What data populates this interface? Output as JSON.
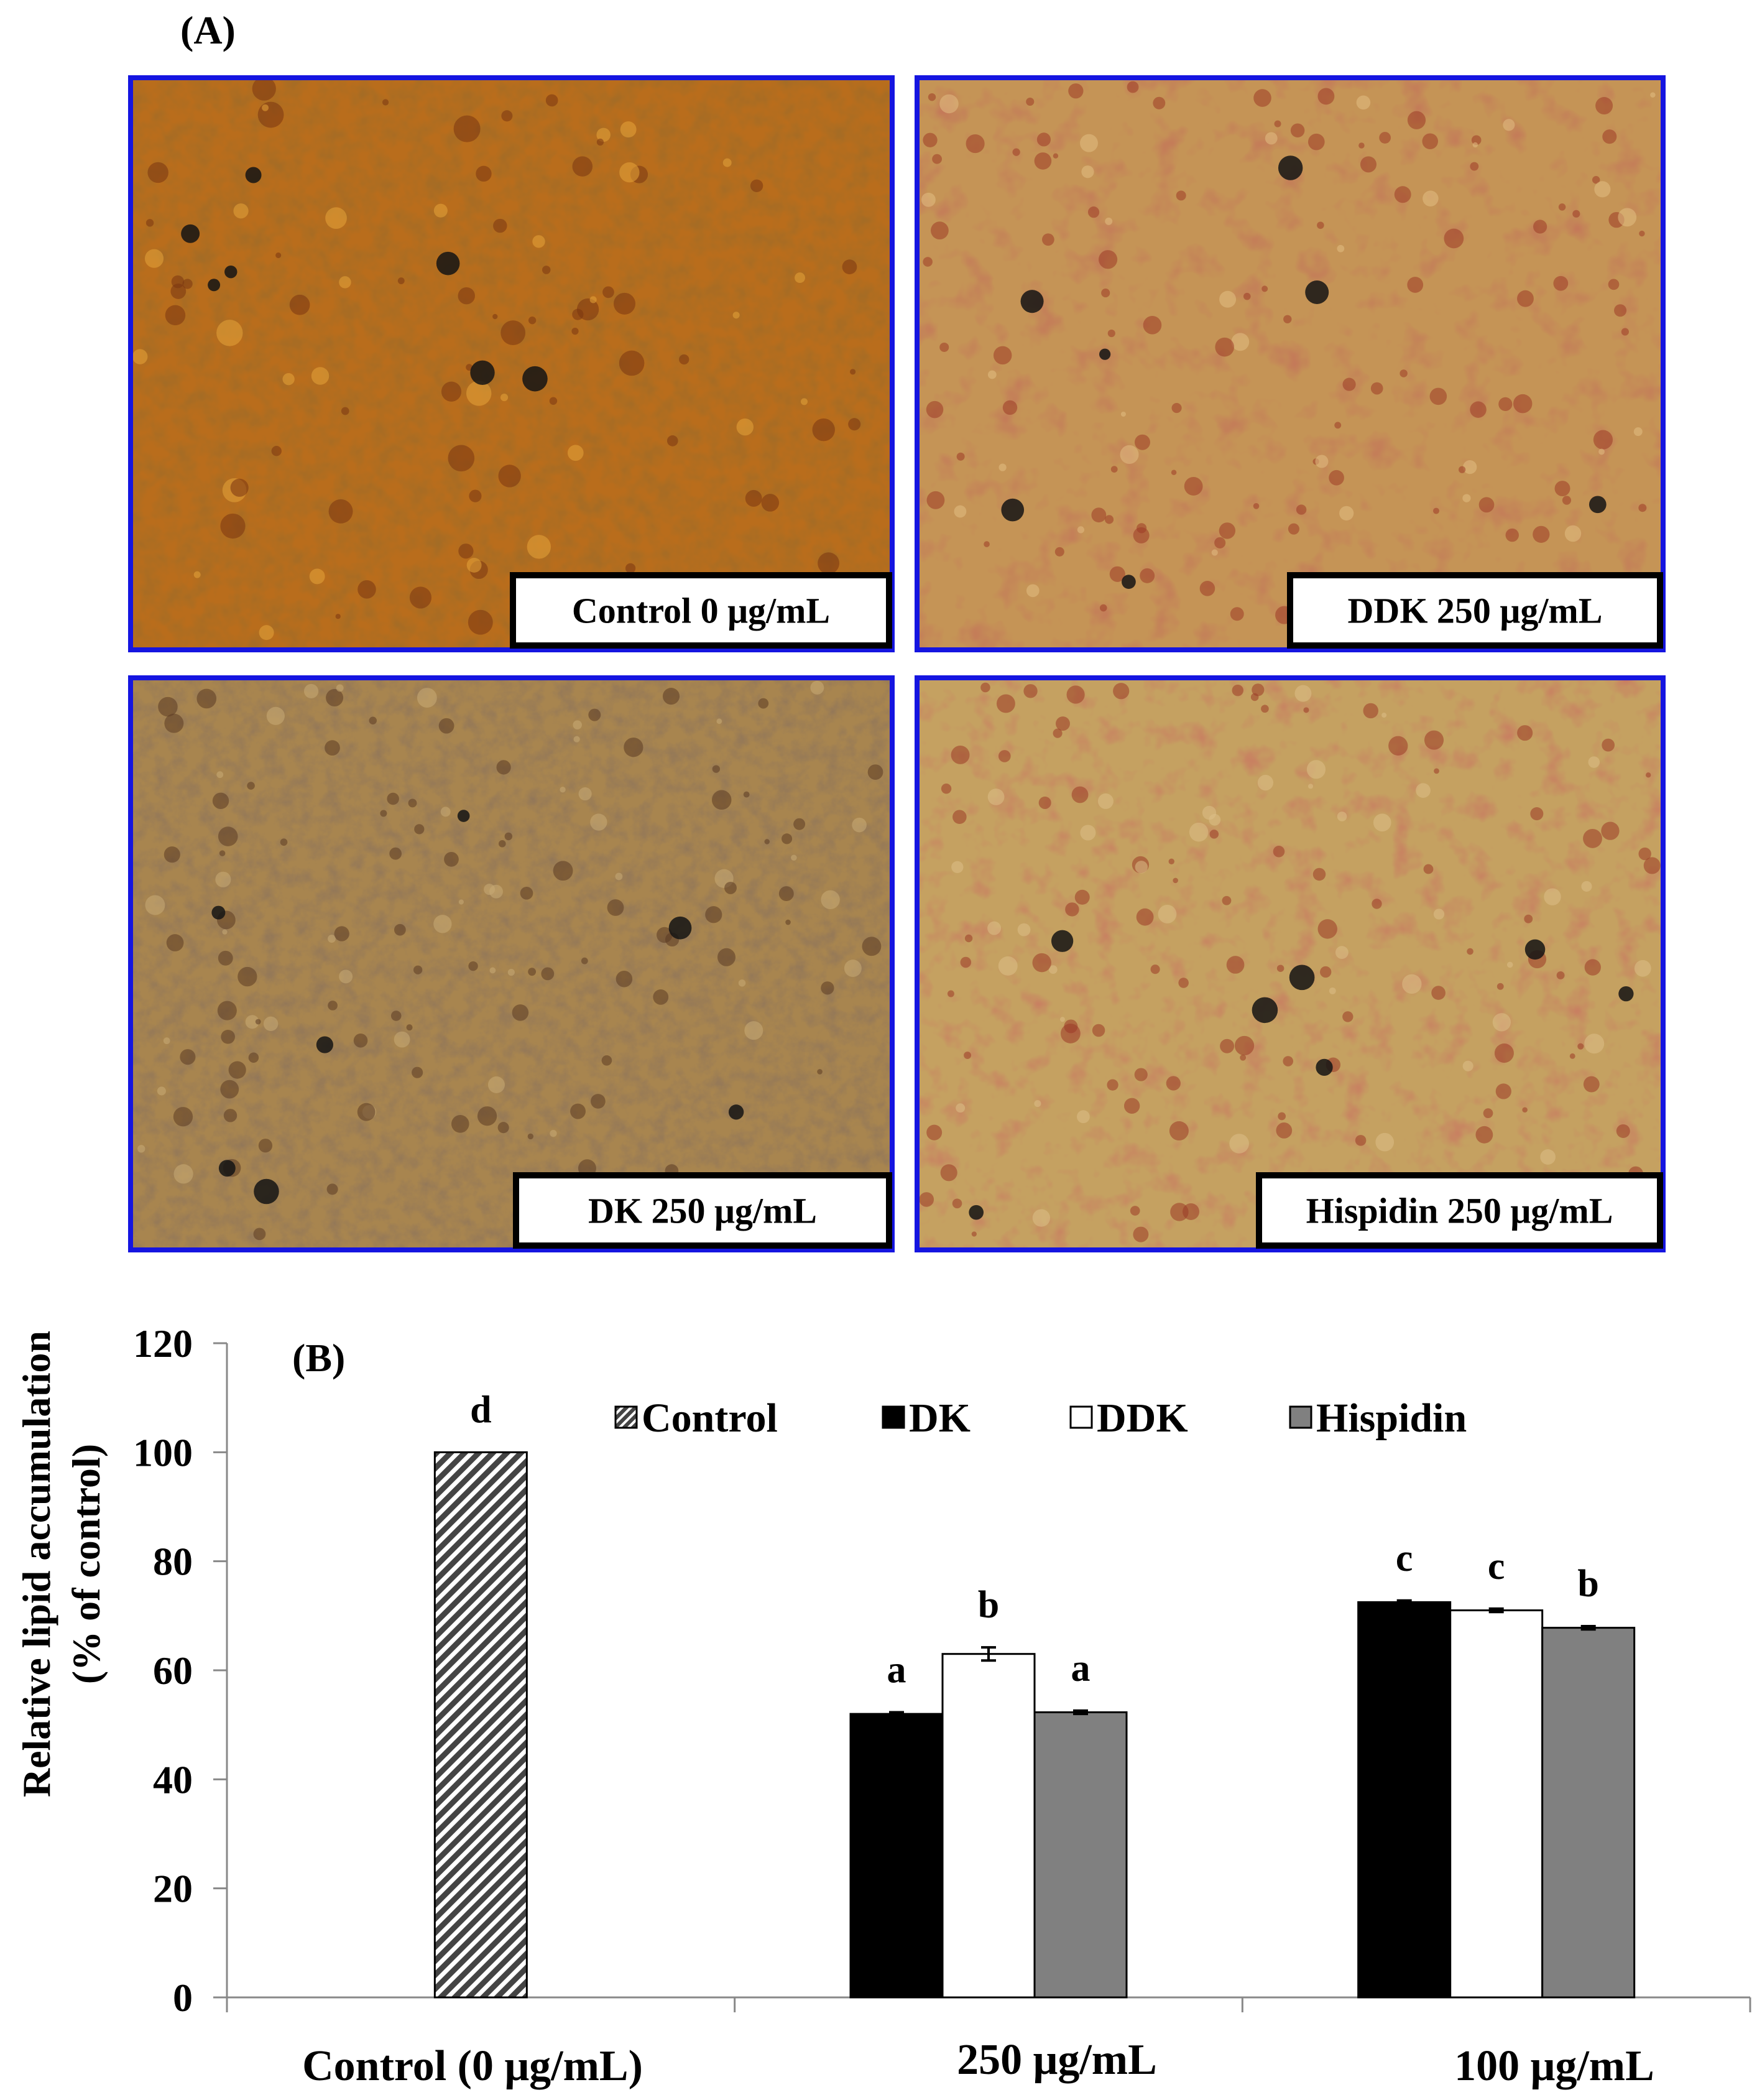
{
  "panel_a": {
    "label": "(A)",
    "images": [
      {
        "caption": "Control 0 μg/mL",
        "tone": "#b96d1c",
        "stain": "#7a3410",
        "highlight": "#e6a43a"
      },
      {
        "caption": "DDK 250 μg/mL",
        "tone": "#c59456",
        "stain": "#9c3a26",
        "highlight": "#e2bd83"
      },
      {
        "caption": "DK 250 μg/mL",
        "tone": "#a8854f",
        "stain": "#5b3b22",
        "highlight": "#c9ac77"
      },
      {
        "caption": "Hispidin 250 μg/mL",
        "tone": "#c5a161",
        "stain": "#9a3b26",
        "highlight": "#ddc089"
      }
    ],
    "frame_color": "#1515e0"
  },
  "chart_data": {
    "type": "bar",
    "panel_label": "(B)",
    "ylabel": "Relative lipid accumulation",
    "ylabel2": "(% of control)",
    "ylim": [
      0,
      120
    ],
    "yticks": [
      "0",
      "20",
      "40",
      "60",
      "80",
      "100",
      "120"
    ],
    "categories": [
      "Control (0 μg/mL)",
      "250 μg/mL",
      "100 μg/mL"
    ],
    "legend_position": "top-right",
    "series": [
      {
        "name": "Control",
        "fill": "hatch",
        "color": "#444444",
        "values": [
          100,
          null,
          null
        ],
        "errors": [
          0,
          null,
          null
        ],
        "labels": [
          "d",
          null,
          null
        ]
      },
      {
        "name": "DK",
        "fill": "solid",
        "color": "#000000",
        "values": [
          null,
          52,
          72.5
        ],
        "errors": [
          null,
          0.3,
          0.3
        ],
        "labels": [
          null,
          "a",
          "c"
        ]
      },
      {
        "name": "DDK",
        "fill": "solid",
        "color": "#ffffff",
        "values": [
          null,
          63,
          71
        ],
        "errors": [
          null,
          1.2,
          0.3
        ],
        "labels": [
          null,
          "b",
          "c"
        ]
      },
      {
        "name": "Hispidin",
        "fill": "solid",
        "color": "#808080",
        "values": [
          null,
          52.3,
          67.8
        ],
        "errors": [
          null,
          0.3,
          0.3
        ],
        "labels": [
          null,
          "a",
          "b"
        ]
      }
    ]
  }
}
